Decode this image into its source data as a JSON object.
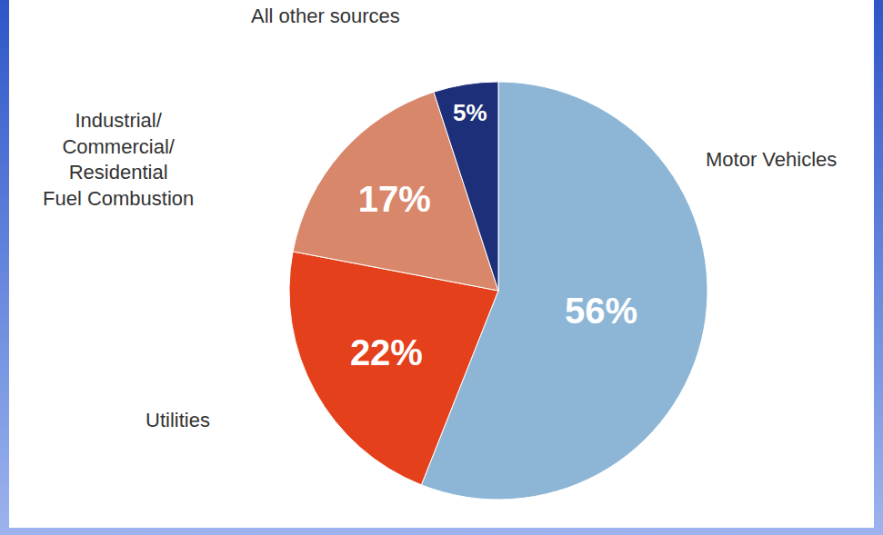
{
  "chart_data": {
    "type": "pie",
    "categories": [
      "Motor Vehicles",
      "Utilities",
      "Industrial/Commercial/Residential Fuel Combustion",
      "All other sources"
    ],
    "values": [
      56,
      22,
      17,
      5
    ],
    "value_labels": [
      "56%",
      "22%",
      "17%",
      "5%"
    ],
    "colors": [
      "#8db6d6",
      "#e5401c",
      "#d9876a",
      "#1d2f78"
    ],
    "data_labels": true
  }
}
